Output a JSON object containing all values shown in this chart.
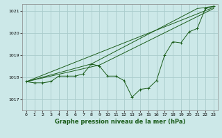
{
  "title": "Graphe pression niveau de la mer (hPa)",
  "bg_color": "#cce8e8",
  "grid_color": "#aacccc",
  "line_color": "#1a5c1a",
  "xlim": [
    -0.5,
    23.5
  ],
  "ylim": [
    1016.5,
    1021.3
  ],
  "yticks": [
    1017,
    1018,
    1019,
    1020,
    1021
  ],
  "xticks": [
    0,
    1,
    2,
    3,
    4,
    5,
    6,
    7,
    8,
    9,
    10,
    11,
    12,
    13,
    14,
    15,
    16,
    17,
    18,
    19,
    20,
    21,
    22,
    23
  ],
  "series_main": {
    "x": [
      0,
      1,
      2,
      3,
      4,
      5,
      6,
      7,
      8,
      9,
      10,
      11,
      12,
      13,
      14,
      15,
      16,
      17,
      18,
      19,
      20,
      21,
      22,
      23
    ],
    "y": [
      1017.8,
      1017.75,
      1017.75,
      1017.8,
      1018.05,
      1018.05,
      1018.05,
      1018.15,
      1018.6,
      1018.5,
      1018.05,
      1018.05,
      1017.85,
      1017.1,
      1017.45,
      1017.5,
      1017.85,
      1019.0,
      1019.6,
      1019.55,
      1020.05,
      1020.2,
      1021.1,
      1021.2
    ]
  },
  "series_smooth1": {
    "x": [
      0,
      23
    ],
    "y": [
      1017.8,
      1021.15
    ]
  },
  "series_smooth2": {
    "x": [
      0,
      9,
      23
    ],
    "y": [
      1017.8,
      1018.55,
      1021.1
    ]
  },
  "series_smooth3": {
    "x": [
      0,
      8,
      21,
      22,
      23
    ],
    "y": [
      1017.8,
      1018.6,
      1021.1,
      1021.15,
      1021.2
    ]
  }
}
